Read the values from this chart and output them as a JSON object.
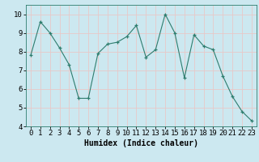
{
  "x": [
    0,
    1,
    2,
    3,
    4,
    5,
    6,
    7,
    8,
    9,
    10,
    11,
    12,
    13,
    14,
    15,
    16,
    17,
    18,
    19,
    20,
    21,
    22,
    23
  ],
  "y": [
    7.8,
    9.6,
    9.0,
    8.2,
    7.3,
    5.5,
    5.5,
    7.9,
    8.4,
    8.5,
    8.8,
    9.4,
    7.7,
    8.1,
    10.0,
    9.0,
    6.6,
    8.9,
    8.3,
    8.1,
    6.7,
    5.6,
    4.8,
    4.3
  ],
  "line_color": "#2e7d6e",
  "marker": "+",
  "marker_size": 3,
  "xlabel": "Humidex (Indice chaleur)",
  "ylim": [
    4,
    10.5
  ],
  "xlim": [
    -0.5,
    23.5
  ],
  "bg_color": "#cce8f0",
  "grid_color": "#e8c8c8",
  "xlabel_fontsize": 7,
  "tick_fontsize": 6.5
}
